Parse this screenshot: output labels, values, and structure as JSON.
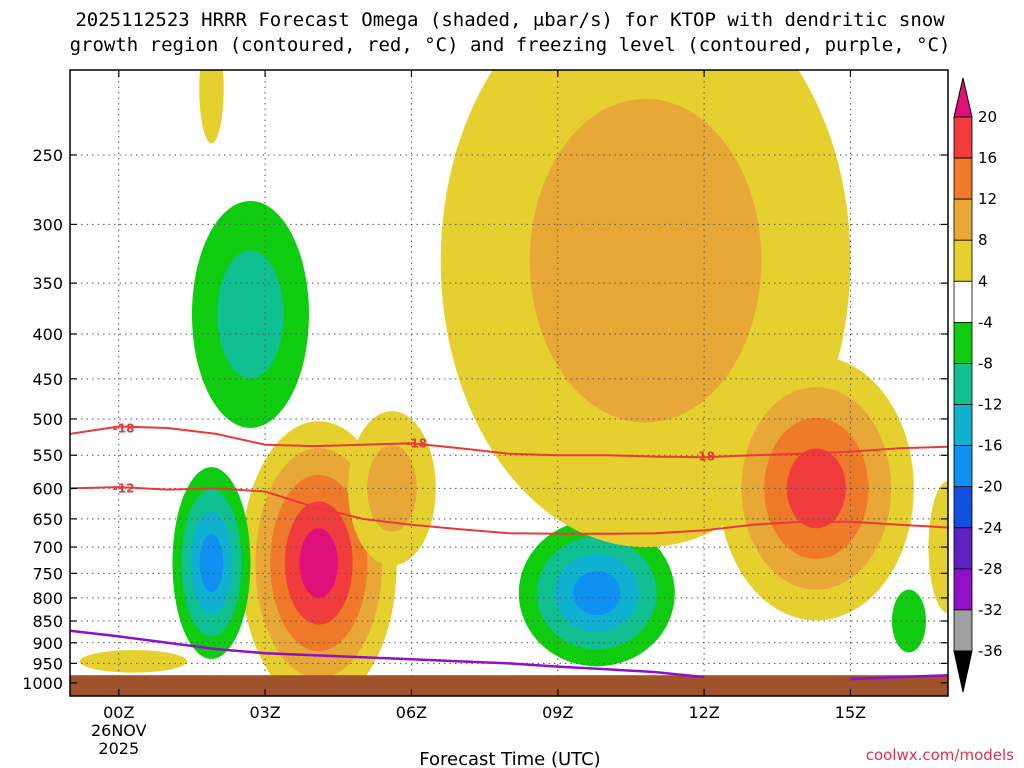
{
  "chart_data": {
    "type": "heatmap",
    "title_line1": "2025112523 HRRR Forecast Omega (shaded, μbar/s) for KTOP with dendritic snow",
    "title_line2": "growth region (contoured, red, °C) and freezing level (contoured, purple, °C)",
    "xlabel": "Forecast Time (UTC)",
    "x_ticks": [
      {
        "hour": 0,
        "label": "00Z",
        "sub1": "26NOV",
        "sub2": "2025"
      },
      {
        "hour": 3,
        "label": "03Z",
        "sub1": "",
        "sub2": ""
      },
      {
        "hour": 6,
        "label": "06Z",
        "sub1": "",
        "sub2": ""
      },
      {
        "hour": 9,
        "label": "09Z",
        "sub1": "",
        "sub2": ""
      },
      {
        "hour": 12,
        "label": "12Z",
        "sub1": "",
        "sub2": ""
      },
      {
        "hour": 15,
        "label": "15Z",
        "sub1": "",
        "sub2": ""
      }
    ],
    "x_range_hours": [
      -1,
      17
    ],
    "y_range_hpa": [
      200,
      1035
    ],
    "y_ticks": [
      250,
      300,
      350,
      400,
      450,
      500,
      550,
      600,
      650,
      700,
      750,
      800,
      850,
      900,
      950,
      1000
    ],
    "colorbar": {
      "unit": "μbar/s",
      "levels": [
        20,
        16,
        12,
        8,
        4,
        -4,
        -8,
        -12,
        -16,
        -20,
        -24,
        -28,
        -32,
        -36
      ],
      "colors": [
        "#f03c3c",
        "#ee7a2a",
        "#e8a838",
        "#e6d030",
        "#ffffff",
        "#10cc10",
        "#10c090",
        "#10b0d0",
        "#1090f0",
        "#1050e0",
        "#6020c0",
        "#9010c8",
        "#a0a0a0"
      ],
      "top_color": "#e0107a",
      "bottom_color": "#000000"
    },
    "omega_blobs": [
      {
        "name": "rising-core-0300",
        "color_seq": [
          "#e6d030",
          "#e8a838",
          "#ee7a2a",
          "#f03c3c",
          "#e0107a"
        ],
        "center": [
          4.1,
          730
        ],
        "radius": [
          1.6,
          260
        ],
        "peak": 24
      },
      {
        "name": "rising-0500-upper",
        "color_seq": [
          "#e6d030",
          "#e8a838"
        ],
        "center": [
          5.6,
          600
        ],
        "radius": [
          0.9,
          120
        ],
        "peak": 10
      },
      {
        "name": "sinking-0200",
        "color_seq": [
          "#10cc10",
          "#10c090",
          "#10b0d0",
          "#1090f0"
        ],
        "center": [
          1.9,
          730
        ],
        "radius": [
          0.8,
          180
        ],
        "peak": -16
      },
      {
        "name": "sinking-0230-upper",
        "color_seq": [
          "#10cc10",
          "#10c090"
        ],
        "center": [
          2.7,
          380
        ],
        "radius": [
          1.2,
          110
        ],
        "peak": -10
      },
      {
        "name": "sinking-1000",
        "color_seq": [
          "#10cc10",
          "#10c090",
          "#10b0d0",
          "#1090f0"
        ],
        "center": [
          9.8,
          790
        ],
        "radius": [
          1.6,
          150
        ],
        "peak": -17
      },
      {
        "name": "rising-upper-1000",
        "color_seq": [
          "#e6d030",
          "#e8a838"
        ],
        "center": [
          10.8,
          330
        ],
        "radius": [
          4.2,
          210
        ],
        "peak": 9
      },
      {
        "name": "rising-1400",
        "color_seq": [
          "#e6d030",
          "#e8a838",
          "#ee7a2a",
          "#f03c3c"
        ],
        "center": [
          14.3,
          600
        ],
        "radius": [
          2.0,
          200
        ],
        "peak": 17
      },
      {
        "name": "sinking-1600",
        "color_seq": [
          "#10cc10"
        ],
        "center": [
          16.2,
          850
        ],
        "radius": [
          0.35,
          70
        ],
        "peak": -6
      },
      {
        "name": "rising-0000-low",
        "color_seq": [
          "#e6d030"
        ],
        "center": [
          0.3,
          945
        ],
        "radius": [
          1.1,
          28
        ],
        "peak": 6
      },
      {
        "name": "rising-0200-top",
        "color_seq": [
          "#e6d030"
        ],
        "center": [
          1.9,
          210
        ],
        "radius": [
          0.25,
          30
        ],
        "peak": 5
      },
      {
        "name": "rising-1700",
        "color_seq": [
          "#e6d030"
        ],
        "center": [
          17.0,
          700
        ],
        "radius": [
          0.4,
          120
        ],
        "peak": 5
      }
    ],
    "dgz_contours": [
      {
        "label": "-18",
        "label_positions": [
          [
            0.1,
            513
          ],
          [
            6.1,
            533
          ],
          [
            12.0,
            552
          ]
        ],
        "points": [
          [
            -1,
            520
          ],
          [
            0,
            510
          ],
          [
            1,
            512
          ],
          [
            2,
            520
          ],
          [
            3,
            535
          ],
          [
            4,
            537
          ],
          [
            5,
            535
          ],
          [
            6,
            533
          ],
          [
            7,
            540
          ],
          [
            8,
            548
          ],
          [
            9,
            550
          ],
          [
            10,
            550
          ],
          [
            11,
            552
          ],
          [
            12,
            553
          ],
          [
            13,
            550
          ],
          [
            14,
            548
          ],
          [
            15,
            545
          ],
          [
            16,
            540
          ],
          [
            17,
            538
          ]
        ]
      },
      {
        "label": "-12",
        "label_positions": [
          [
            0.1,
            600
          ]
        ],
        "points": [
          [
            -1,
            600
          ],
          [
            0,
            598
          ],
          [
            1,
            602
          ],
          [
            2,
            600
          ],
          [
            3,
            605
          ],
          [
            4,
            630
          ],
          [
            5,
            650
          ],
          [
            6,
            660
          ],
          [
            7,
            668
          ],
          [
            8,
            675
          ],
          [
            9,
            676
          ],
          [
            10,
            676
          ],
          [
            11,
            675
          ],
          [
            12,
            670
          ],
          [
            13,
            660
          ],
          [
            14,
            655
          ],
          [
            15,
            655
          ],
          [
            16,
            660
          ],
          [
            17,
            665
          ]
        ]
      }
    ],
    "freezing_level": {
      "label": "0",
      "segments": [
        [
          [
            -1,
            872
          ],
          [
            0,
            885
          ],
          [
            1,
            900
          ],
          [
            2,
            915
          ],
          [
            3,
            925
          ],
          [
            4,
            930
          ],
          [
            5,
            935
          ],
          [
            6,
            940
          ],
          [
            7,
            945
          ],
          [
            8,
            950
          ],
          [
            9,
            958
          ],
          [
            10,
            965
          ],
          [
            11,
            972
          ],
          [
            12,
            985
          ]
        ],
        [
          [
            15,
            990
          ],
          [
            16,
            985
          ],
          [
            17,
            980
          ]
        ]
      ]
    },
    "ground_hpa": 980,
    "credit": "coolwx.com/models"
  }
}
